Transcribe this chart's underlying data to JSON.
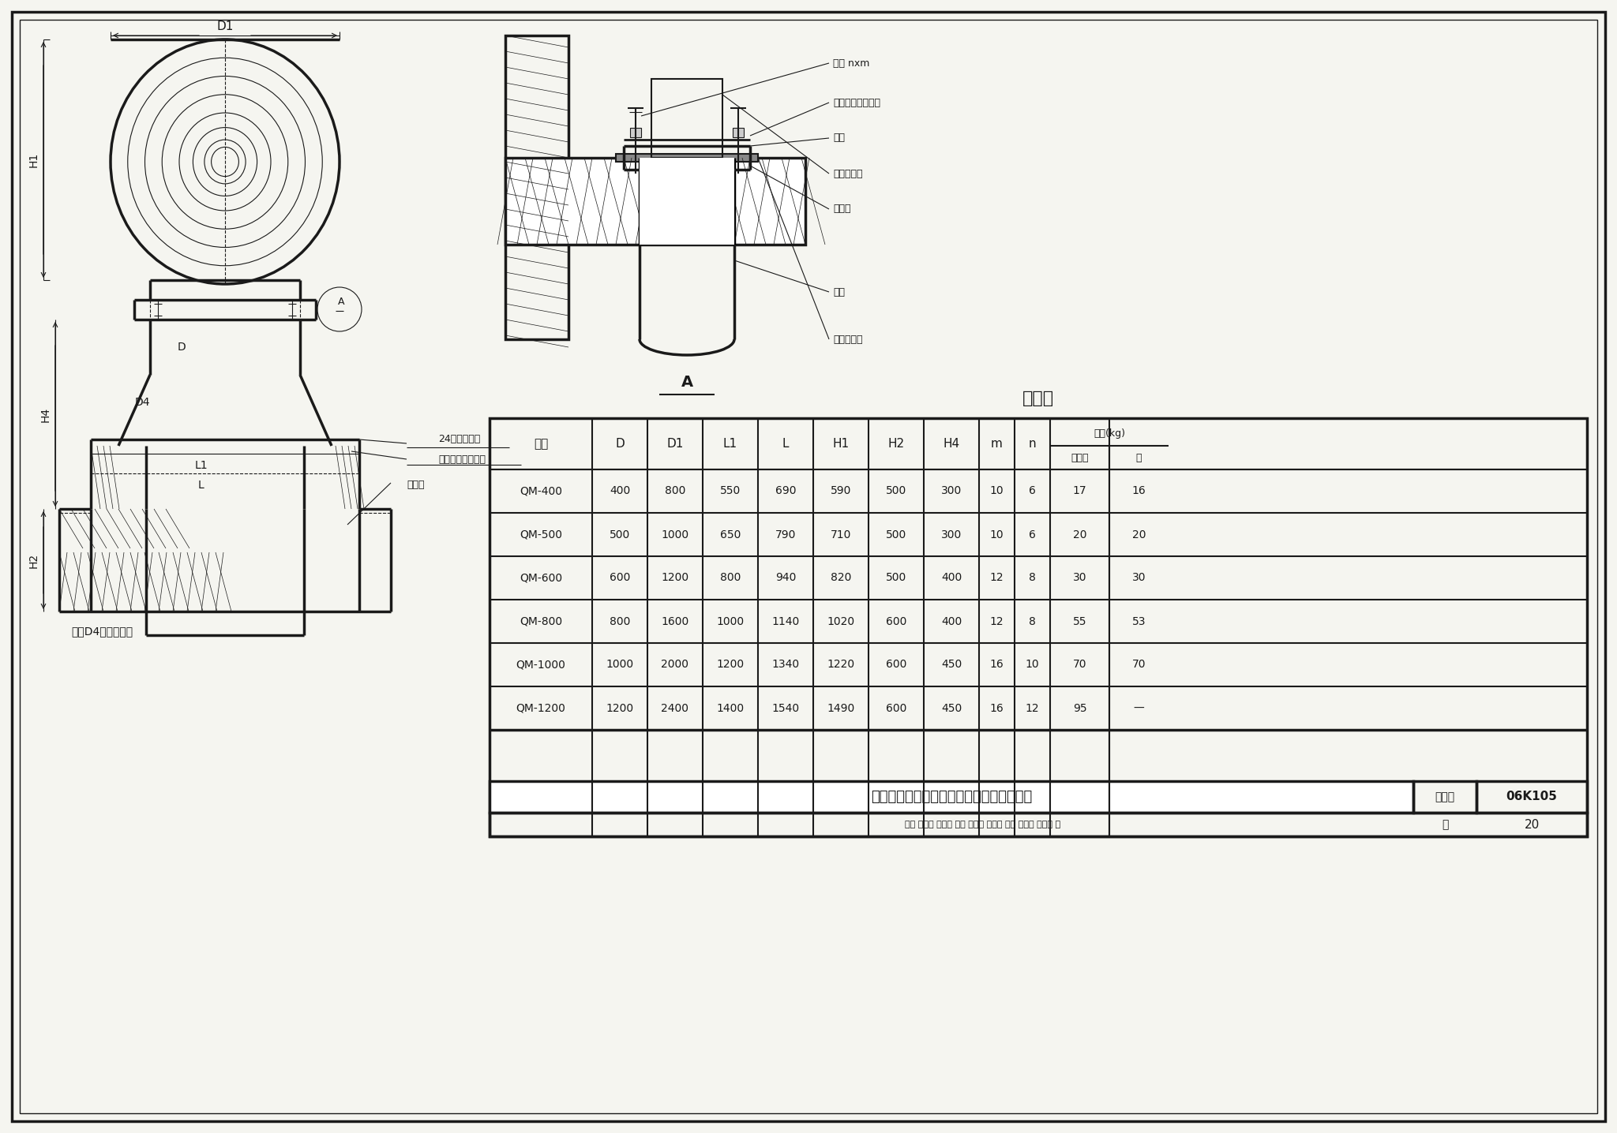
{
  "title": "旋流型屋顶自然通风器混凝土屋面板上安装",
  "figure_number": "06K105",
  "page": "20",
  "table_title": "尺寸表",
  "table_headers": [
    "型号",
    "D",
    "D1",
    "L1",
    "L",
    "H1",
    "H2",
    "H4",
    "m",
    "n",
    "不锈钢",
    "铝"
  ],
  "table_subheader": "重量(kg)",
  "table_data": [
    [
      "QM-400",
      "400",
      "800",
      "550",
      "690",
      "590",
      "500",
      "300",
      "10",
      "6",
      "17",
      "16"
    ],
    [
      "QM-500",
      "500",
      "1000",
      "650",
      "790",
      "710",
      "500",
      "300",
      "10",
      "6",
      "20",
      "20"
    ],
    [
      "QM-600",
      "600",
      "1200",
      "800",
      "940",
      "820",
      "500",
      "400",
      "12",
      "8",
      "30",
      "30"
    ],
    [
      "QM-800",
      "800",
      "1600",
      "1000",
      "1140",
      "1020",
      "600",
      "400",
      "12",
      "8",
      "55",
      "53"
    ],
    [
      "QM-1000",
      "1000",
      "2000",
      "1200",
      "1340",
      "1220",
      "600",
      "450",
      "16",
      "10",
      "70",
      "70"
    ],
    [
      "QM-1200",
      "1200",
      "2400",
      "1400",
      "1540",
      "1490",
      "600",
      "450",
      "16",
      "12",
      "95",
      "—"
    ]
  ],
  "bottom_text": "审核 温庚寅 汤仗勇 校对 汪朝晖 汤朝晖 设计 赵立民 赵立民 页",
  "annotations_left": [
    "24号镀锌钢板",
    "附加防水卷材一层",
    "保温层",
    "D4",
    "L1",
    "L",
    "H1",
    "H4",
    "H2"
  ],
  "annotations_right": [
    "螺栓 nxm",
    "孔隙内填入油腻子",
    "垫圈",
    "旋流通风器",
    "橡胶圈",
    "垫圈",
    "薄钢板底座"
  ],
  "section_label": "A",
  "bg_color": "#f5f5f0",
  "line_color": "#1a1a1a",
  "table_bg": "#ffffff"
}
